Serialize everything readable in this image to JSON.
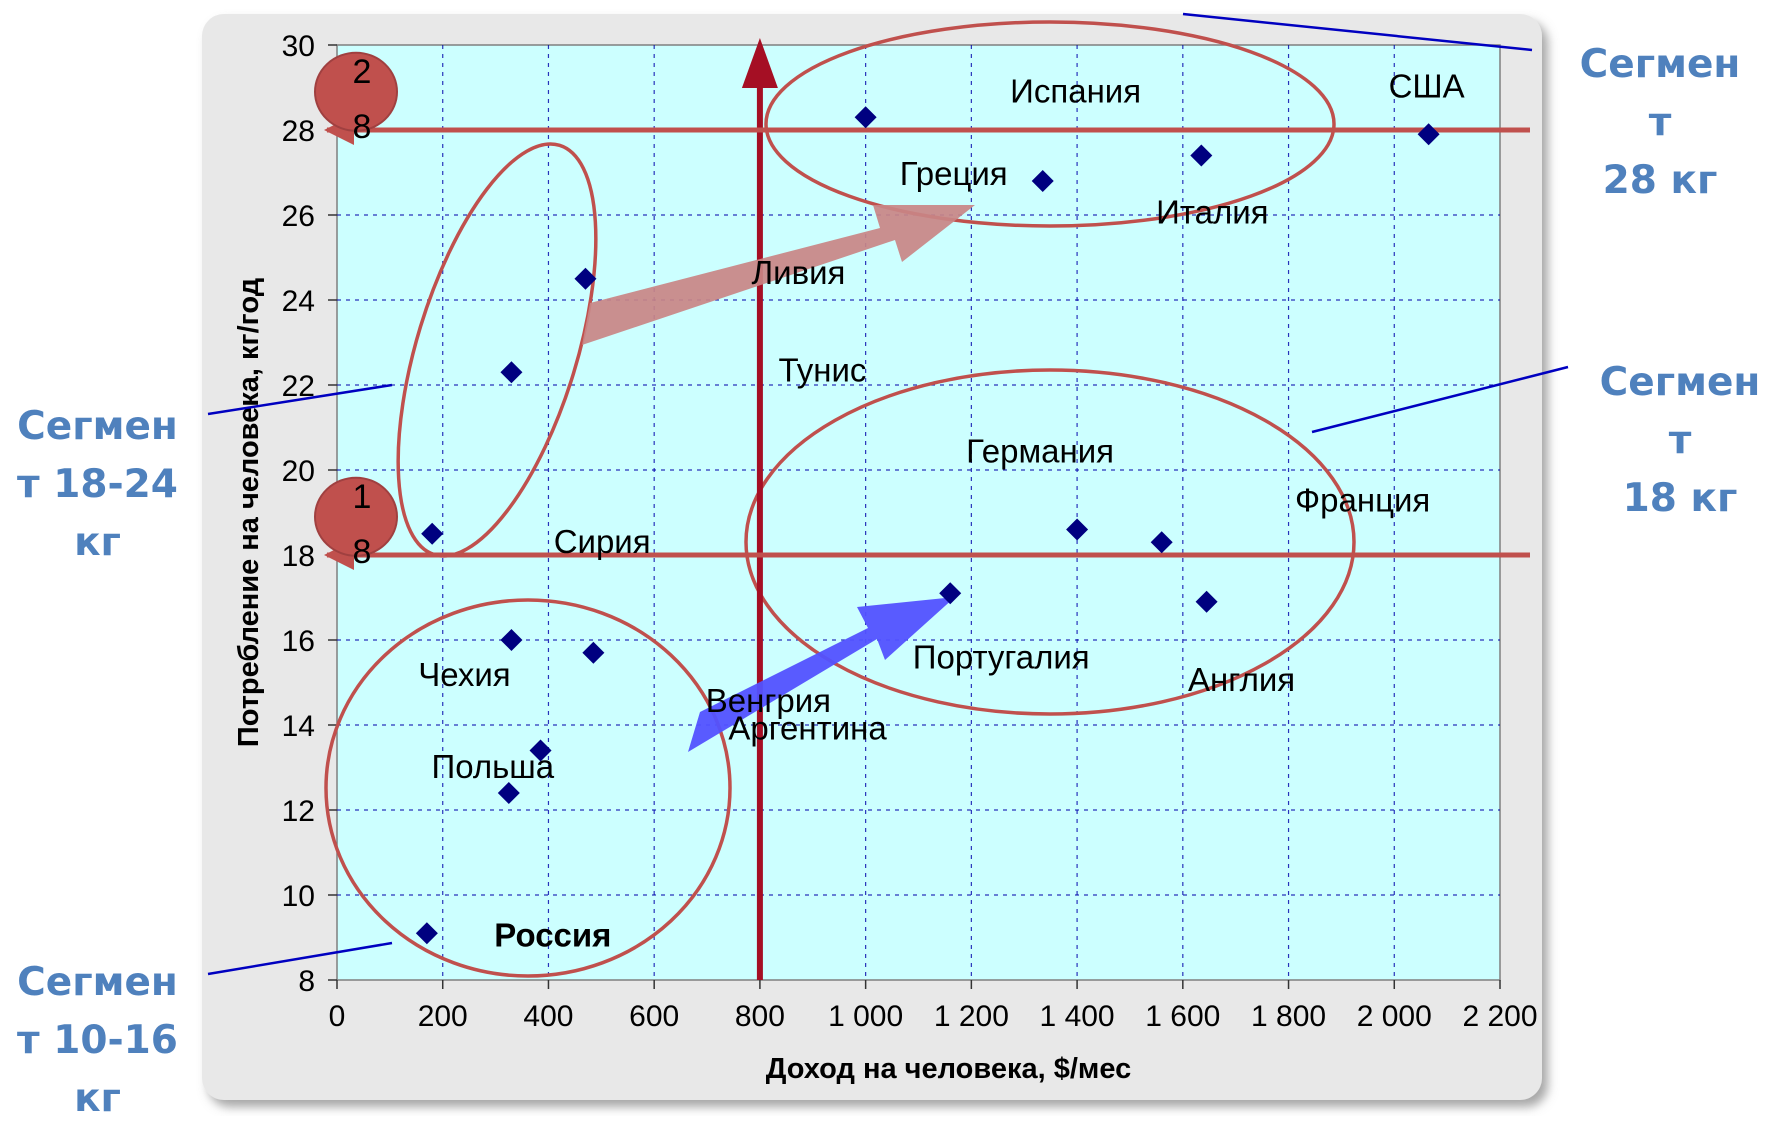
{
  "chart_data": {
    "type": "scatter",
    "xlabel": "Доход на человека, $/мес",
    "ylabel": "Потребление на человека, кг/год",
    "xlim": [
      0,
      2200
    ],
    "ylim": [
      8,
      30
    ],
    "x_ticks": [
      0,
      200,
      400,
      600,
      800,
      1000,
      1200,
      1400,
      1600,
      1800,
      2000,
      2200
    ],
    "x_tick_labels": [
      "0",
      "200",
      "400",
      "600",
      "800",
      "1 000",
      "1 200",
      "1 400",
      "1 600",
      "1 800",
      "2 000",
      "2 200"
    ],
    "y_ticks": [
      8,
      10,
      12,
      14,
      16,
      18,
      20,
      22,
      24,
      26,
      28,
      30
    ],
    "y_tick_labels": [
      "8",
      "10",
      "12",
      "14",
      "16",
      "18",
      "20",
      "22",
      "24",
      "26",
      "28",
      "30"
    ],
    "grid": true,
    "marker": "diamond",
    "points": [
      {
        "label": "Россия",
        "x": 170,
        "y": 9.1,
        "bold": true
      },
      {
        "label": "Сирия",
        "x": 180,
        "y": 18.5
      },
      {
        "label": "Польша",
        "x": 325,
        "y": 12.4
      },
      {
        "label": "Чехия",
        "x": 330,
        "y": 16.0
      },
      {
        "label": "Тунис",
        "x": 330,
        "y": 22.3
      },
      {
        "label": "Аргентина",
        "x": 385,
        "y": 13.4
      },
      {
        "label": "Ливия",
        "x": 470,
        "y": 24.5
      },
      {
        "label": "Венгрия",
        "x": 485,
        "y": 15.7
      },
      {
        "label": "Испания",
        "x": 1000,
        "y": 28.3
      },
      {
        "label": "Португалия",
        "x": 1160,
        "y": 17.1
      },
      {
        "label": "Греция",
        "x": 1335,
        "y": 26.8
      },
      {
        "label": "Германия",
        "x": 1400,
        "y": 18.6
      },
      {
        "label": "Франция",
        "x": 1560,
        "y": 18.3
      },
      {
        "label": "Италия",
        "x": 1635,
        "y": 27.4
      },
      {
        "label": "Англия",
        "x": 1645,
        "y": 16.9
      },
      {
        "label": "США",
        "x": 2065,
        "y": 27.9
      }
    ],
    "reference_lines": {
      "vertical_x": 800,
      "horizontal_y": [
        18,
        28
      ]
    },
    "level_badges": [
      "28",
      "18"
    ],
    "colors": {
      "plot_bg": "#ccffff",
      "frame_bg": "#e8e8e8",
      "marker": "#000080",
      "accent_red": "#a50f24",
      "ellipse": "#c0504d",
      "segment_text": "#4f81bd",
      "callout_line": "#0000c0"
    }
  },
  "segments": [
    {
      "label": "Сегмен\nт\n28 кг"
    },
    {
      "label": "Сегмен\nт\n18 кг"
    },
    {
      "label": "Сегмен\nт 18-24\nкг"
    },
    {
      "label": "Сегмен\nт 10-16\nкг"
    }
  ]
}
